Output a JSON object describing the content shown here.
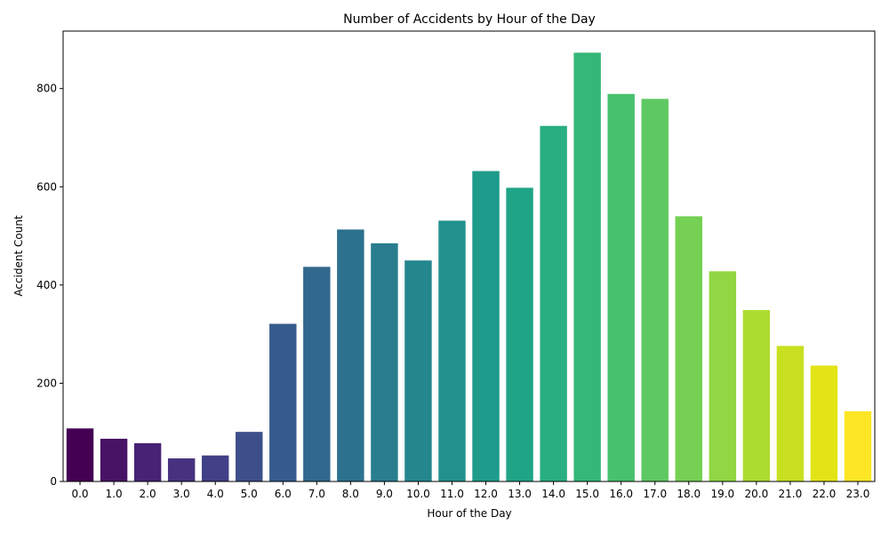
{
  "chart_data": {
    "type": "bar",
    "title": "Number of Accidents by Hour of the Day",
    "xlabel": "Hour of the Day",
    "ylabel": "Accident Count",
    "categories": [
      "0.0",
      "1.0",
      "2.0",
      "3.0",
      "4.0",
      "5.0",
      "6.0",
      "7.0",
      "8.0",
      "9.0",
      "10.0",
      "11.0",
      "12.0",
      "13.0",
      "14.0",
      "15.0",
      "16.0",
      "17.0",
      "18.0",
      "19.0",
      "20.0",
      "21.0",
      "22.0",
      "23.0"
    ],
    "values": [
      108,
      87,
      78,
      47,
      53,
      101,
      321,
      437,
      513,
      485,
      450,
      531,
      632,
      598,
      724,
      873,
      789,
      779,
      540,
      428,
      349,
      276,
      236,
      143
    ],
    "colors": [
      "#440154",
      "#471365",
      "#482374",
      "#46327e",
      "#424086",
      "#3c4f8a",
      "#365c8d",
      "#31688e",
      "#2c728e",
      "#287d8e",
      "#25878e",
      "#21918c",
      "#1e9b8a",
      "#20a486",
      "#28ae80",
      "#35b779",
      "#48c16e",
      "#5ec962",
      "#75d054",
      "#90d743",
      "#addc30",
      "#c8e020",
      "#e3e418",
      "#fde725"
    ],
    "ylim": [
      0,
      917
    ],
    "yticks": [
      0,
      200,
      400,
      600,
      800
    ],
    "grid": false,
    "legend": "none"
  }
}
